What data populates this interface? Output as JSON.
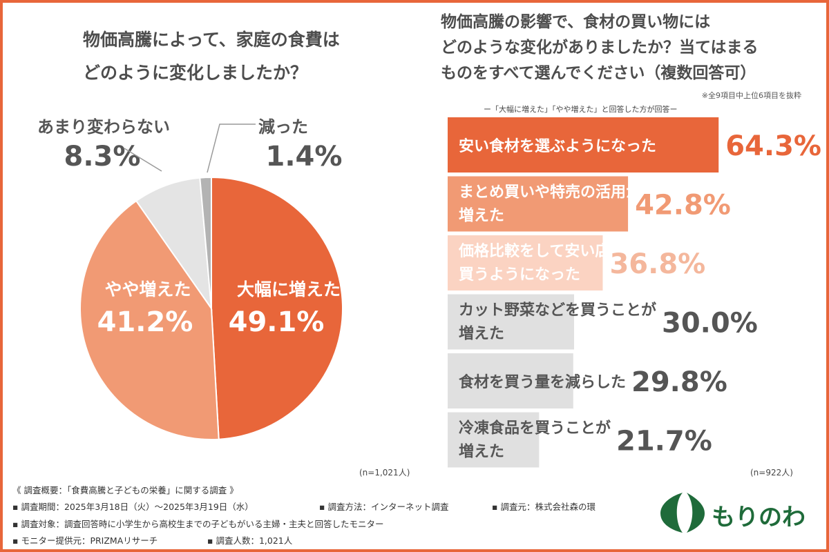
{
  "left_title": [
    "物価高騰によって、家庭の食費は",
    "どのように変化しましたか？"
  ],
  "right_title": [
    "物価高騰の影響で、食材の買い物には",
    "どのような変化がありましたか？当てはまる",
    "ものをすべて選んでください（複数回答可）"
  ],
  "right_note1": "※全9項目中上位6項目を抜粋",
  "right_note2": "ー「大幅に増えた」「やや増えた」と回答した方が回答ー",
  "chart_data": [
    {
      "type": "pie",
      "title": "物価高騰によって、家庭の食費はどのように変化しましたか？",
      "n_label": "(n=1,021人)",
      "slices": [
        {
          "label": "大幅に増えた",
          "value": 49.1,
          "value_text": "49.1%",
          "color": "#e8663a"
        },
        {
          "label": "やや増えた",
          "value": 41.2,
          "value_text": "41.2%",
          "color": "#f19a74"
        },
        {
          "label": "あまり変わらない",
          "value": 8.3,
          "value_text": "8.3%",
          "color": "#e4e4e4"
        },
        {
          "label": "減った",
          "value": 1.4,
          "value_text": "1.4%",
          "color": "#b3b3b3"
        }
      ]
    },
    {
      "type": "bar",
      "orientation": "horizontal",
      "title": "物価高騰の影響で、食材の買い物にはどのような変化がありましたか？当てはまるものをすべて選んでください（複数回答可）",
      "n_label": "(n=922人)",
      "xlim": [
        0,
        100
      ],
      "categories": [
        [
          "安い食材を選ぶようになった"
        ],
        [
          "まとめ買いや特売の活用が",
          "増えた"
        ],
        [
          "価格比較をして安い店で",
          "買うようになった"
        ],
        [
          "カット野菜などを買うことが",
          "増えた"
        ],
        [
          "食材を買う量を減らした"
        ],
        [
          "冷凍食品を買うことが",
          "増えた"
        ]
      ],
      "values": [
        64.3,
        42.8,
        36.8,
        30.0,
        29.8,
        21.7
      ],
      "value_texts": [
        "64.3%",
        "42.8%",
        "36.8%",
        "30.0%",
        "29.8%",
        "21.7%"
      ],
      "bar_colors": [
        "#e8663a",
        "#f19a74",
        "#fbd3c2",
        "#e0e0e0",
        "#e0e0e0",
        "#e0e0e0"
      ],
      "value_colors": [
        "#e8663a",
        "#f19a74",
        "#f4b79c",
        "#555555",
        "#555555",
        "#555555"
      ],
      "label_colors": [
        "#ffffff",
        "#ffffff",
        "#ffffff",
        "#555555",
        "#555555",
        "#555555"
      ]
    }
  ],
  "footer": {
    "line1": "《 調査概要：「食費高騰と子どもの栄養」に関する調査 》",
    "period": "▪ 調査期間：2025年3月18日（火）〜2025年3月19日（水）",
    "method": "▪ 調査方法：インターネット調査",
    "source": "▪ 調査元：株式会社森の環",
    "target": "▪ 調査対象：調査回答時に小学生から高校生までの子どもがいる主婦・主夫と回答したモニター",
    "provider": "▪ モニター提供元：PRIZMAリサーチ",
    "count": "▪ 調査人数：1,021人"
  },
  "logo": {
    "text": "もりのわ",
    "color": "#1f6b3a"
  }
}
